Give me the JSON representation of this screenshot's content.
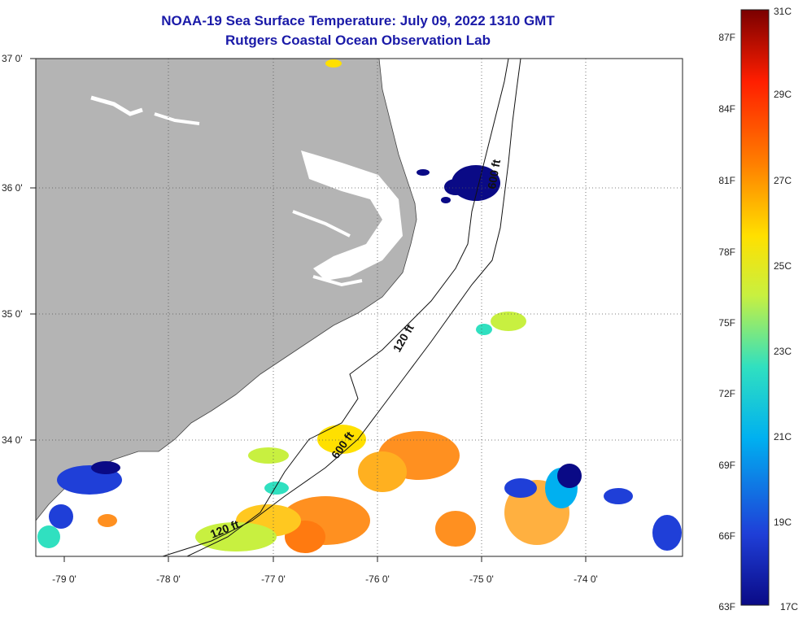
{
  "title": {
    "line1": "NOAA-19 Sea Surface Temperature:  July 09, 2022 1310 GMT",
    "line2": "Rutgers Coastal Ocean Observation Lab"
  },
  "map": {
    "lat_labels": [
      "37 0'",
      "36 0'",
      "35 0'",
      "34 0'"
    ],
    "lon_labels": [
      "-79 0'",
      "-78 0'",
      "-77 0'",
      "-76 0'",
      "-75 0'",
      "-74 0'"
    ],
    "contour_labels": [
      "600 ft",
      "120 ft",
      "600 ft",
      "120 ft"
    ],
    "colors": {
      "land": "#b4b4b4",
      "water_nodata": "#ffffff",
      "grid": "#555555"
    }
  },
  "colorbar": {
    "f_labels": [
      "87F",
      "84F",
      "81F",
      "78F",
      "75F",
      "72F",
      "69F",
      "66F",
      "63F"
    ],
    "c_labels": [
      "31C",
      "29C",
      "27C",
      "25C",
      "23C",
      "21C",
      "19C",
      "17C"
    ],
    "range_c": [
      17,
      31
    ],
    "colors": [
      "#0a0a86",
      "#1f3fd8",
      "#00b0f0",
      "#30e0c0",
      "#c8f040",
      "#ffe000",
      "#ff8000",
      "#ff1e00",
      "#7a0000"
    ]
  }
}
